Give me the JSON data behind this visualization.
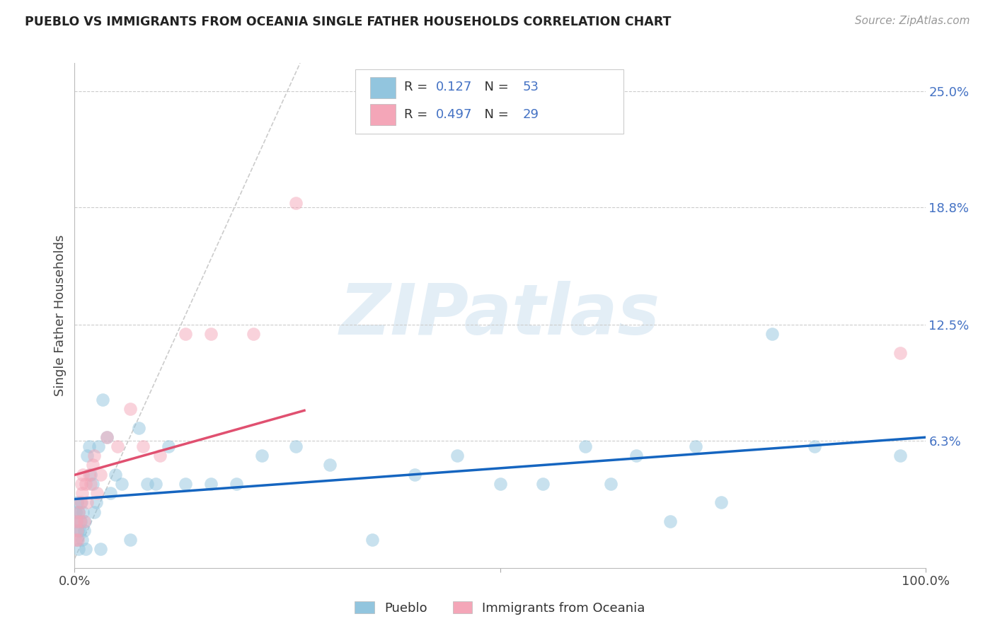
{
  "title": "PUEBLO VS IMMIGRANTS FROM OCEANIA SINGLE FATHER HOUSEHOLDS CORRELATION CHART",
  "source": "Source: ZipAtlas.com",
  "ylabel": "Single Father Households",
  "watermark": "ZIPatlas",
  "ytick_vals": [
    0.063,
    0.125,
    0.188,
    0.25
  ],
  "ytick_labels": [
    "6.3%",
    "12.5%",
    "18.8%",
    "25.0%"
  ],
  "xlim": [
    0.0,
    1.0
  ],
  "ylim": [
    -0.005,
    0.265
  ],
  "color_blue": "#92c5de",
  "color_pink": "#f4a6b8",
  "color_blue_line": "#1565c0",
  "color_pink_line": "#e05070",
  "color_diag": "#cccccc",
  "color_grid": "#cccccc",
  "color_right_labels": "#4472c4",
  "pueblo_R": 0.127,
  "pueblo_N": 53,
  "oceania_R": 0.497,
  "oceania_N": 29,
  "pueblo_x": [
    0.001,
    0.002,
    0.003,
    0.003,
    0.004,
    0.005,
    0.005,
    0.006,
    0.007,
    0.008,
    0.009,
    0.01,
    0.011,
    0.012,
    0.013,
    0.015,
    0.017,
    0.019,
    0.021,
    0.023,
    0.025,
    0.028,
    0.03,
    0.033,
    0.038,
    0.042,
    0.048,
    0.055,
    0.065,
    0.075,
    0.085,
    0.095,
    0.11,
    0.13,
    0.16,
    0.19,
    0.22,
    0.26,
    0.3,
    0.35,
    0.4,
    0.45,
    0.5,
    0.55,
    0.6,
    0.63,
    0.66,
    0.7,
    0.73,
    0.76,
    0.82,
    0.87,
    0.97
  ],
  "pueblo_y": [
    0.025,
    0.02,
    0.01,
    0.03,
    0.015,
    0.025,
    0.005,
    0.015,
    0.02,
    0.03,
    0.01,
    0.025,
    0.015,
    0.02,
    0.005,
    0.055,
    0.06,
    0.045,
    0.04,
    0.025,
    0.03,
    0.06,
    0.005,
    0.085,
    0.065,
    0.035,
    0.045,
    0.04,
    0.01,
    0.07,
    0.04,
    0.04,
    0.06,
    0.04,
    0.04,
    0.04,
    0.055,
    0.06,
    0.05,
    0.01,
    0.045,
    0.055,
    0.04,
    0.04,
    0.06,
    0.04,
    0.055,
    0.02,
    0.06,
    0.03,
    0.12,
    0.06,
    0.055
  ],
  "oceania_x": [
    0.001,
    0.002,
    0.003,
    0.004,
    0.005,
    0.006,
    0.007,
    0.008,
    0.009,
    0.01,
    0.011,
    0.013,
    0.015,
    0.017,
    0.019,
    0.021,
    0.023,
    0.026,
    0.03,
    0.038,
    0.05,
    0.065,
    0.08,
    0.1,
    0.13,
    0.16,
    0.21,
    0.26,
    0.97
  ],
  "oceania_y": [
    0.01,
    0.02,
    0.015,
    0.01,
    0.025,
    0.02,
    0.03,
    0.04,
    0.035,
    0.045,
    0.02,
    0.04,
    0.03,
    0.045,
    0.04,
    0.05,
    0.055,
    0.035,
    0.045,
    0.065,
    0.06,
    0.08,
    0.06,
    0.055,
    0.12,
    0.12,
    0.12,
    0.19,
    0.11
  ]
}
